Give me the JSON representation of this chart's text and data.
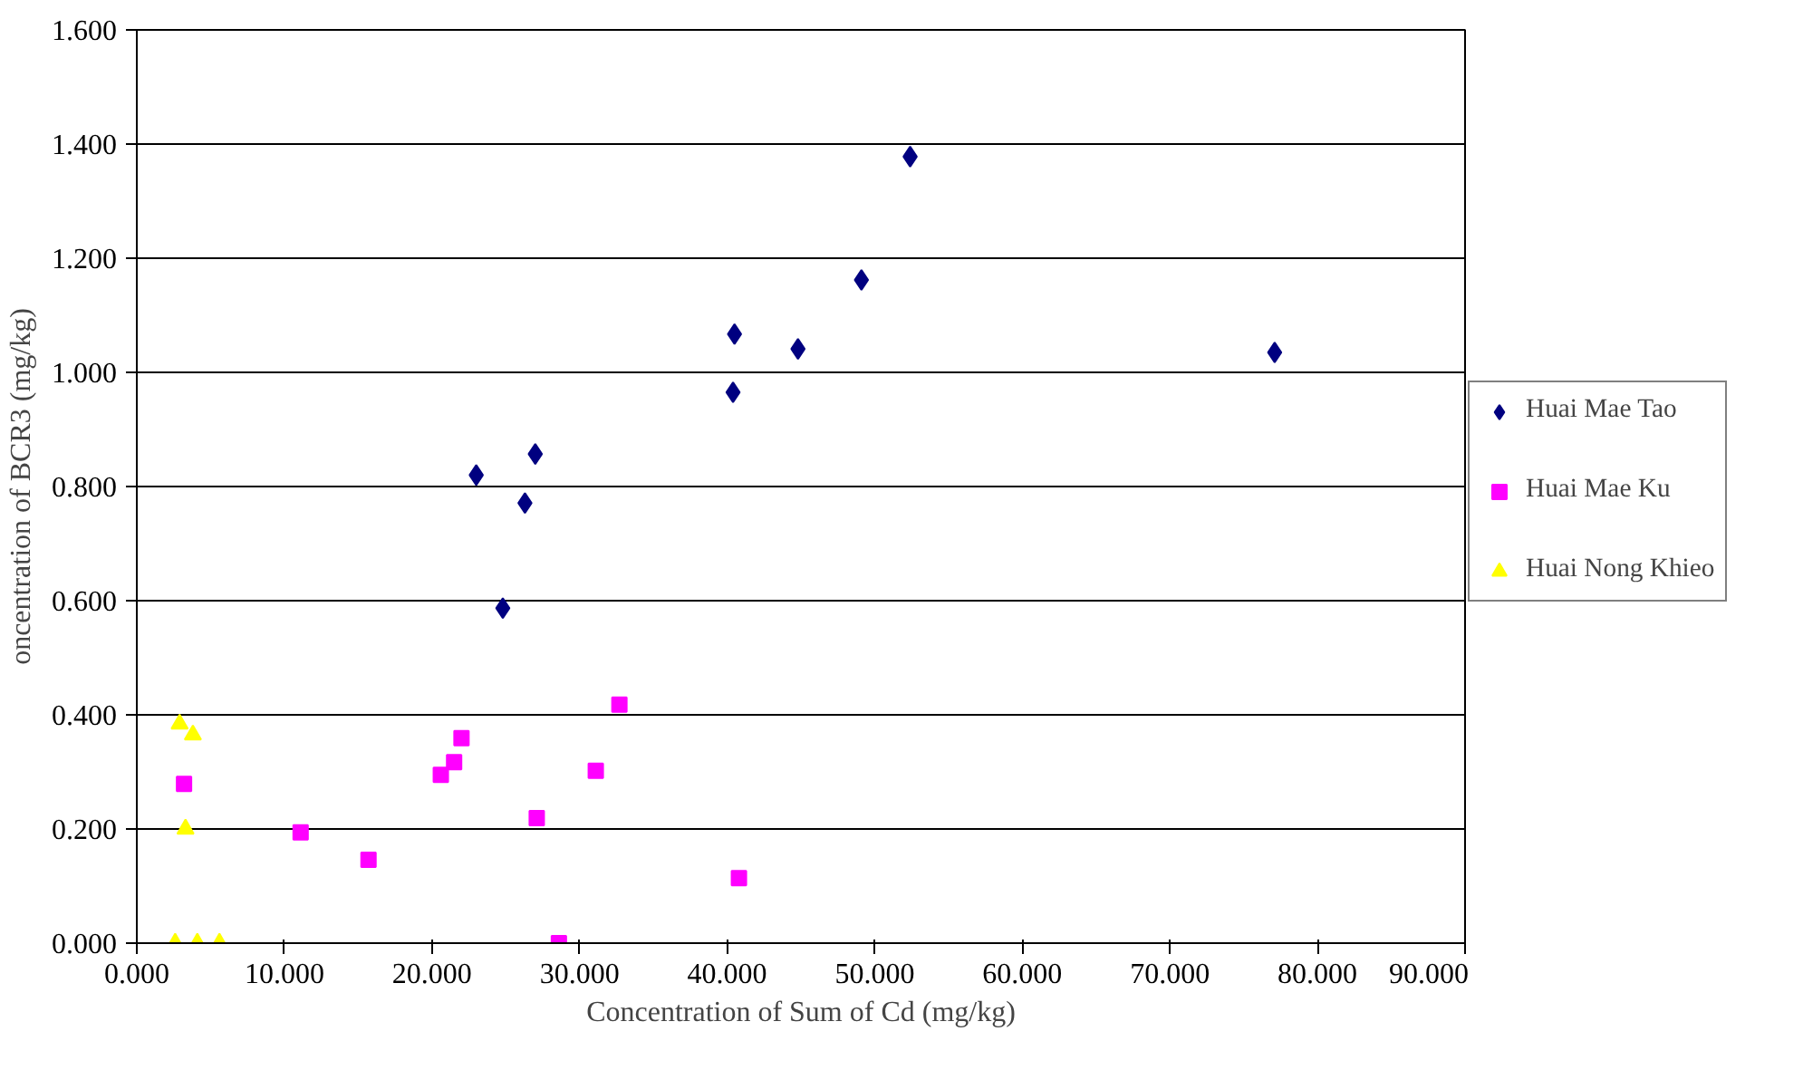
{
  "chart_data": {
    "type": "scatter",
    "xlabel": "Concentration of Sum of Cd (mg/kg)",
    "ylabel": "oncentration of BCR3 (mg/kg)",
    "xlim": [
      0,
      90
    ],
    "ylim": [
      0,
      1.6
    ],
    "xticks": [
      {
        "value": 0,
        "label": "0.000"
      },
      {
        "value": 10,
        "label": "10.000"
      },
      {
        "value": 20,
        "label": "20.000"
      },
      {
        "value": 30,
        "label": "30.000"
      },
      {
        "value": 40,
        "label": "40.000"
      },
      {
        "value": 50,
        "label": "50.000"
      },
      {
        "value": 60,
        "label": "60.000"
      },
      {
        "value": 70,
        "label": "70.000"
      },
      {
        "value": 80,
        "label": "80.000"
      },
      {
        "value": 90,
        "label": "90.000"
      }
    ],
    "yticks": [
      {
        "value": 0,
        "label": "0.000"
      },
      {
        "value": 0.2,
        "label": "0.200"
      },
      {
        "value": 0.4,
        "label": "0.400"
      },
      {
        "value": 0.6,
        "label": "0.600"
      },
      {
        "value": 0.8,
        "label": "0.800"
      },
      {
        "value": 1.0,
        "label": "1.000"
      },
      {
        "value": 1.2,
        "label": "1.200"
      },
      {
        "value": 1.4,
        "label": "1.400"
      },
      {
        "value": 1.6,
        "label": "1.600"
      }
    ],
    "grid": "y",
    "legend": "right",
    "series": [
      {
        "name": "Huai Mae Tao",
        "color": "#000080",
        "marker": "diamond",
        "x": [
          23.0,
          27.0,
          26.3,
          24.8,
          40.5,
          40.4,
          44.8,
          49.1,
          52.4,
          77.1
        ],
        "values": [
          0.82,
          0.857,
          0.771,
          0.587,
          1.067,
          0.965,
          1.041,
          1.162,
          1.378,
          1.035
        ]
      },
      {
        "name": "Huai Mae Ku",
        "color": "#ff00ff",
        "marker": "square",
        "x": [
          3.2,
          11.1,
          15.7,
          20.6,
          21.5,
          22.0,
          27.1,
          28.6,
          31.1,
          32.7,
          40.8
        ],
        "values": [
          0.279,
          0.194,
          0.146,
          0.295,
          0.317,
          0.359,
          0.219,
          0.0,
          0.302,
          0.418,
          0.114
        ]
      },
      {
        "name": "Huai Nong Khieo",
        "color": "#ffff00",
        "marker": "triangle",
        "x": [
          2.9,
          3.8,
          3.3,
          2.6,
          4.1,
          5.6
        ],
        "values": [
          0.384,
          0.365,
          0.2,
          0.0,
          0.0,
          0.0
        ]
      }
    ]
  }
}
